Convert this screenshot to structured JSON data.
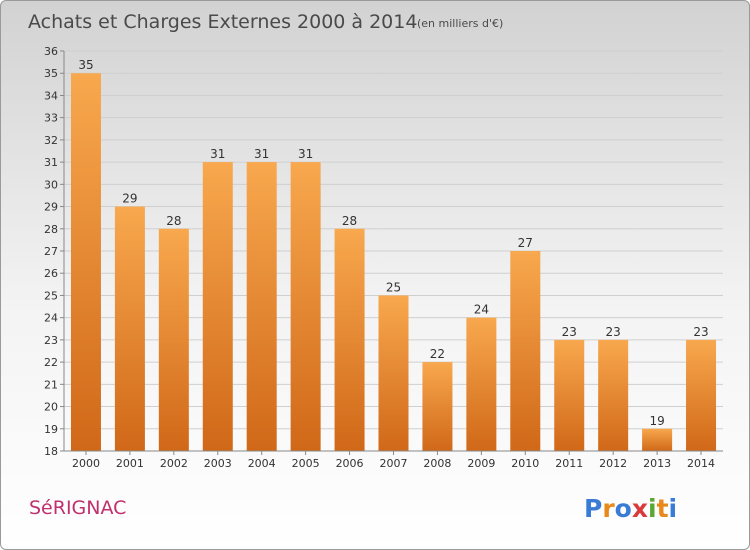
{
  "header": {
    "title": "Achats et Charges Externes 2000 à 2014",
    "unit": "(en milliers d'€)"
  },
  "footer": {
    "place": "SéRIGNAC",
    "logo_letters": [
      "P",
      "r",
      "o",
      "x",
      "i",
      "t",
      "i"
    ],
    "logo_colors": [
      "#3a7bd5",
      "#e8891c",
      "#3a7bd5",
      "#d93b3b",
      "#5aa832",
      "#e8891c",
      "#3a7bd5"
    ]
  },
  "colors": {
    "bar_light": "#f8a84e",
    "bar_dark": "#d06818",
    "grid": "#cfcfcf",
    "place": "#c0306e"
  },
  "chart_data": {
    "type": "bar",
    "title": "Achats et Charges Externes 2000 à 2014",
    "subtitle": "(en milliers d'€)",
    "categories": [
      "2000",
      "2001",
      "2002",
      "2003",
      "2004",
      "2005",
      "2006",
      "2007",
      "2008",
      "2009",
      "2010",
      "2011",
      "2012",
      "2013",
      "2014"
    ],
    "values": [
      35,
      29,
      28,
      31,
      31,
      31,
      28,
      25,
      22,
      24,
      27,
      23,
      23,
      19,
      23
    ],
    "ylim": [
      18,
      36
    ],
    "yticks": [
      18,
      19,
      20,
      21,
      22,
      23,
      24,
      25,
      26,
      27,
      28,
      29,
      30,
      31,
      32,
      33,
      34,
      35,
      36
    ],
    "grid": true,
    "xlabel": "",
    "ylabel": ""
  }
}
